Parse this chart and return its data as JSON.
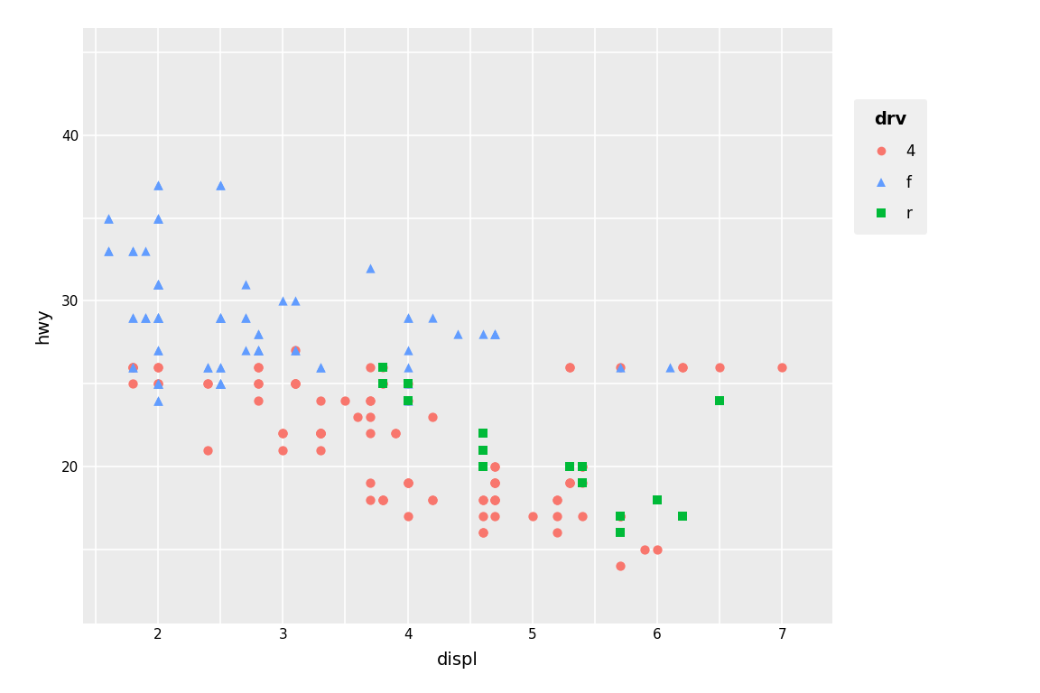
{
  "xlabel": "displ",
  "ylabel": "hwy",
  "legend_title": "drv",
  "bg_color": "#EBEBEB",
  "grid_color": "#FFFFFF",
  "xlim": [
    1.4,
    7.4
  ],
  "ylim": [
    10.5,
    46.5
  ],
  "xticks": [
    2,
    3,
    4,
    5,
    6,
    7
  ],
  "yticks": [
    20,
    30,
    40
  ],
  "groups": {
    "4": {
      "color": "#F8766D",
      "marker": "o",
      "displ": [
        1.8,
        1.8,
        2.0,
        2.0,
        2.8,
        2.8,
        3.1,
        1.8,
        1.8,
        2.0,
        2.0,
        2.8,
        2.8,
        3.1,
        3.1,
        2.8,
        3.1,
        4.2,
        5.3,
        5.3,
        5.3,
        5.7,
        6.0,
        5.7,
        5.7,
        6.2,
        6.2,
        7.0,
        5.3,
        5.3,
        5.7,
        6.5,
        2.4,
        2.4,
        3.1,
        3.5,
        3.6,
        2.4,
        3.0,
        3.3,
        3.3,
        3.3,
        3.3,
        3.3,
        3.8,
        3.8,
        3.8,
        4.0,
        3.7,
        3.7,
        3.9,
        3.9,
        4.7,
        4.7,
        4.7,
        5.2,
        5.2,
        4.7,
        4.7,
        4.7,
        4.7,
        4.7,
        4.7,
        5.2,
        5.2,
        5.7,
        5.9,
        4.6,
        5.4,
        5.4,
        4.0,
        4.0,
        4.0,
        4.0,
        4.6,
        5.0,
        4.2,
        4.2,
        4.6,
        4.6,
        4.6,
        5.4,
        5.4,
        3.0,
        3.0,
        3.3,
        3.3,
        3.8,
        3.8,
        3.8,
        4.0,
        3.7,
        3.7,
        3.7,
        3.7,
        3.7
      ],
      "hwy": [
        26,
        26,
        26,
        26,
        26,
        26,
        27,
        26,
        25,
        25,
        25,
        25,
        25,
        25,
        25,
        24,
        25,
        23,
        19,
        19,
        19,
        17,
        15,
        17,
        17,
        26,
        26,
        26,
        26,
        26,
        26,
        26,
        25,
        25,
        25,
        24,
        23,
        21,
        21,
        22,
        22,
        24,
        22,
        22,
        25,
        25,
        26,
        25,
        26,
        23,
        22,
        22,
        18,
        18,
        18,
        18,
        18,
        20,
        20,
        19,
        19,
        19,
        17,
        17,
        16,
        14,
        15,
        18,
        17,
        19,
        19,
        19,
        19,
        17,
        17,
        17,
        18,
        18,
        18,
        16,
        16,
        20,
        20,
        22,
        22,
        22,
        21,
        18,
        18,
        18,
        24,
        24,
        24,
        22,
        19,
        18
      ]
    },
    "f": {
      "color": "#619CFF",
      "marker": "^",
      "displ": [
        1.8,
        1.8,
        2.0,
        2.0,
        2.8,
        2.8,
        3.1,
        1.8,
        1.8,
        2.0,
        2.0,
        2.8,
        2.8,
        3.1,
        3.1,
        1.9,
        2.0,
        2.0,
        2.0,
        2.0,
        2.7,
        2.7,
        2.7,
        3.0,
        3.7,
        4.0,
        4.7,
        4.7,
        4.7,
        5.7,
        6.1,
        4.0,
        4.2,
        4.4,
        4.6,
        4.0,
        4.0,
        4.0,
        4.0,
        2.4,
        2.4,
        2.5,
        2.5,
        3.3,
        2.0,
        2.0,
        2.0,
        2.0,
        2.8,
        1.9,
        2.0,
        2.0,
        2.0,
        2.0,
        2.5,
        2.5,
        2.8,
        2.8,
        1.6,
        1.6,
        2.0,
        2.5,
        2.5,
        3.3,
        2.0,
        2.0,
        2.0,
        2.0,
        2.7,
        1.8,
        1.8,
        2.5,
        2.5,
        1.9,
        1.9,
        2.5,
        2.5,
        1.6,
        1.6,
        2.0,
        2.0,
        2.0,
        2.5,
        2.5,
        2.5,
        2.5,
        2.5,
        2.5,
        2.0,
        2.0
      ],
      "hwy": [
        29,
        29,
        31,
        31,
        27,
        27,
        30,
        26,
        26,
        27,
        27,
        27,
        27,
        27,
        27,
        33,
        35,
        37,
        35,
        37,
        31,
        29,
        27,
        30,
        32,
        29,
        28,
        28,
        28,
        26,
        26,
        29,
        29,
        28,
        28,
        27,
        26,
        25,
        24,
        26,
        26,
        25,
        25,
        26,
        24,
        24,
        25,
        25,
        27,
        29,
        31,
        31,
        31,
        31,
        26,
        26,
        28,
        28,
        33,
        33,
        35,
        37,
        37,
        26,
        29,
        29,
        29,
        29,
        29,
        33,
        33,
        29,
        29,
        29,
        29,
        29,
        29,
        35,
        35,
        29,
        29,
        29,
        29,
        25,
        25,
        25,
        25,
        25,
        25,
        25
      ]
    },
    "r": {
      "color": "#00BA38",
      "marker": "s",
      "displ": [
        3.8,
        3.8,
        4.0,
        4.0,
        4.6,
        4.6,
        4.6,
        4.6,
        4.6,
        5.4,
        5.4,
        5.3,
        5.3,
        5.7,
        6.0,
        5.7,
        6.2,
        6.5
      ],
      "hwy": [
        26,
        25,
        25,
        24,
        21,
        21,
        22,
        21,
        20,
        20,
        19,
        20,
        20,
        16,
        18,
        17,
        17,
        24
      ]
    }
  }
}
